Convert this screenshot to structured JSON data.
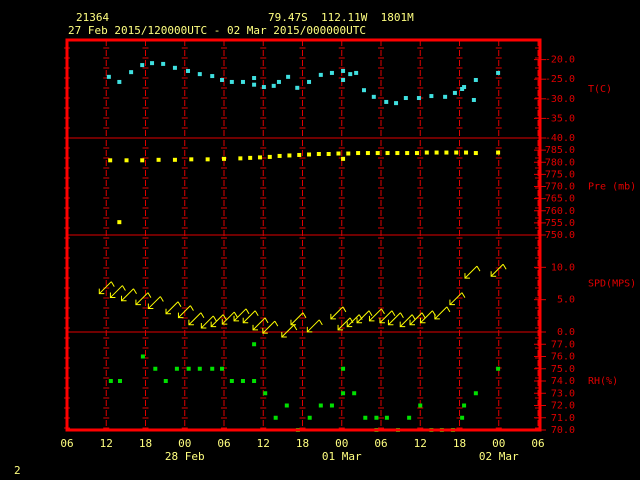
{
  "header": {
    "station": "21364",
    "location": "79.47S  112.11W  1801M",
    "period": "27 Feb 2015/120000UTC - 02 Mar 2015/000000UTC",
    "page": "2"
  },
  "chart_data": [
    {
      "type": "scatter",
      "ylabel": "T(C)",
      "color": "#40e0e0",
      "x": [
        6.4,
        8.0,
        9.8,
        11.5,
        13.0,
        14.7,
        16.5,
        18.5,
        20.3,
        22.2,
        23.7,
        25.2,
        26.9,
        28.6,
        28.6,
        30.1,
        31.6,
        32.4,
        33.8,
        35.2,
        37.0,
        38.8,
        40.5,
        42.2,
        42.2,
        43.3,
        44.2,
        45.4,
        46.9,
        48.8,
        50.3,
        51.8,
        53.8,
        55.7,
        57.8,
        59.3,
        60.4,
        60.7,
        62.2,
        62.5,
        65.9
      ],
      "values": [
        -24.4,
        -25.7,
        -23.2,
        -21.4,
        -20.9,
        -21.1,
        -22.1,
        -22.9,
        -23.7,
        -24.2,
        -25.2,
        -25.7,
        -25.7,
        -24.7,
        -26.4,
        -27.0,
        -26.7,
        -25.7,
        -24.4,
        -27.2,
        -25.7,
        -23.9,
        -23.4,
        -22.9,
        -25.2,
        -23.7,
        -23.4,
        -27.8,
        -29.5,
        -30.8,
        -31.1,
        -29.8,
        -29.8,
        -29.3,
        -29.5,
        -28.5,
        -27.5,
        -27.0,
        -30.3,
        -25.2,
        -23.4
      ],
      "ylim": [
        -40,
        -15
      ],
      "yticks": [
        {
          "value": -20,
          "label": "-20.0"
        },
        {
          "value": -25,
          "label": "-25.0"
        },
        {
          "value": -30,
          "label": "-30.0"
        },
        {
          "value": -35,
          "label": "-35.0"
        },
        {
          "value": -40,
          "label": "-40.0"
        }
      ]
    },
    {
      "type": "scatter",
      "ylabel": "Pre (mb)",
      "color": "#ffff00",
      "x": [
        6.6,
        9.1,
        11.5,
        14.0,
        16.5,
        19.0,
        21.5,
        24.0,
        26.5,
        28.0,
        29.5,
        31.0,
        32.5,
        34.0,
        35.5,
        37.0,
        38.5,
        40.0,
        41.5,
        42.2,
        43.0,
        44.5,
        46.0,
        47.5,
        49.0,
        50.5,
        52.0,
        53.5,
        55.0,
        56.5,
        58.0,
        59.5,
        61.0,
        62.5,
        65.9,
        8.0
      ],
      "values": [
        780.8,
        780.8,
        780.8,
        781.0,
        781.0,
        781.2,
        781.2,
        781.4,
        781.6,
        781.8,
        782.0,
        782.2,
        782.6,
        782.8,
        783.0,
        783.2,
        783.4,
        783.4,
        783.6,
        781.4,
        783.6,
        783.8,
        783.8,
        783.8,
        783.8,
        783.8,
        783.8,
        783.8,
        784.0,
        784.0,
        784.0,
        784.0,
        784.0,
        783.8,
        784.0,
        755.3
      ],
      "ylim": [
        750,
        790
      ],
      "yticks": [
        {
          "value": 785,
          "label": "785.0"
        },
        {
          "value": 780,
          "label": "780.0"
        },
        {
          "value": 775,
          "label": "775.0"
        },
        {
          "value": 770,
          "label": "770.0"
        },
        {
          "value": 765,
          "label": "765.0"
        },
        {
          "value": 760,
          "label": "760.0"
        },
        {
          "value": 755,
          "label": "755.0"
        },
        {
          "value": 750,
          "label": "750.0"
        }
      ]
    },
    {
      "type": "wind",
      "ylabel": "SPD(MPS)",
      "color": "#ffff00",
      "x": [
        5.7,
        7.4,
        9.1,
        11.3,
        13.2,
        15.9,
        17.8,
        19.4,
        21.3,
        22.8,
        24.5,
        26.3,
        27.7,
        29.2,
        30.7,
        33.6,
        35.0,
        37.5,
        41.1,
        42.2,
        43.6,
        45.1,
        47.0,
        48.6,
        49.9,
        51.7,
        53.2,
        54.8,
        57.0,
        59.3,
        61.6,
        65.6
      ],
      "values": [
        6.7,
        6.1,
        5.6,
        5.0,
        4.4,
        3.6,
        3.0,
        1.9,
        1.4,
        1.6,
        2.0,
        2.5,
        2.2,
        1.1,
        0.6,
        0.0,
        1.9,
        0.8,
        2.8,
        1.1,
        1.6,
        2.2,
        2.5,
        2.2,
        1.9,
        1.6,
        1.9,
        2.2,
        2.8,
        5.0,
        9.1,
        9.4
      ],
      "ylim": [
        0,
        15
      ],
      "yticks": [
        {
          "value": 10,
          "label": "10.0"
        },
        {
          "value": 5,
          "label": "5.0"
        },
        {
          "value": 0,
          "label": "0.0"
        }
      ]
    },
    {
      "type": "scatter",
      "ylabel": "RH(%)",
      "color": "#00e000",
      "x": [
        6.7,
        8.1,
        11.6,
        13.5,
        15.1,
        16.8,
        18.6,
        20.3,
        22.2,
        23.7,
        25.2,
        26.9,
        28.6,
        28.6,
        30.3,
        31.9,
        33.6,
        35.3,
        37.1,
        38.8,
        40.5,
        42.2,
        42.2,
        43.9,
        45.6,
        47.3,
        47.3,
        48.9,
        50.6,
        52.3,
        54.0,
        55.7,
        57.3,
        59.0,
        60.4,
        60.7,
        62.5,
        65.9
      ],
      "values": [
        74,
        74,
        76,
        75,
        74,
        75,
        75,
        75,
        75,
        75,
        74,
        74,
        74,
        77,
        73,
        71,
        72,
        70,
        71,
        72,
        72,
        73,
        75,
        73,
        71,
        70,
        71,
        71,
        70,
        71,
        72,
        70,
        70,
        70,
        71,
        72,
        73,
        75
      ],
      "ylim": [
        70,
        78
      ],
      "yticks": [
        {
          "value": 77,
          "label": "77.0"
        },
        {
          "value": 76,
          "label": "76.0"
        },
        {
          "value": 75,
          "label": "75.0"
        },
        {
          "value": 74,
          "label": "74.0"
        },
        {
          "value": 73,
          "label": "73.0"
        },
        {
          "value": 72,
          "label": "72.0"
        },
        {
          "value": 71,
          "label": "71.0"
        },
        {
          "value": 70,
          "label": "70.0"
        }
      ],
      "xlim": [
        0,
        72
      ],
      "xticks": [
        {
          "value": 0,
          "label": "06"
        },
        {
          "value": 6,
          "label": "12"
        },
        {
          "value": 12,
          "label": "18"
        },
        {
          "value": 18,
          "label": "00"
        },
        {
          "value": 24,
          "label": "06"
        },
        {
          "value": 30,
          "label": "12"
        },
        {
          "value": 36,
          "label": "18"
        },
        {
          "value": 42,
          "label": "00"
        },
        {
          "value": 48,
          "label": "06"
        },
        {
          "value": 54,
          "label": "12"
        },
        {
          "value": 60,
          "label": "18"
        },
        {
          "value": 66,
          "label": "00"
        },
        {
          "value": 72,
          "label": "06"
        }
      ],
      "date_labels": [
        {
          "value": 18,
          "label": "28 Feb"
        },
        {
          "value": 42,
          "label": "01 Mar"
        },
        {
          "value": 66,
          "label": "02 Mar"
        }
      ]
    }
  ]
}
